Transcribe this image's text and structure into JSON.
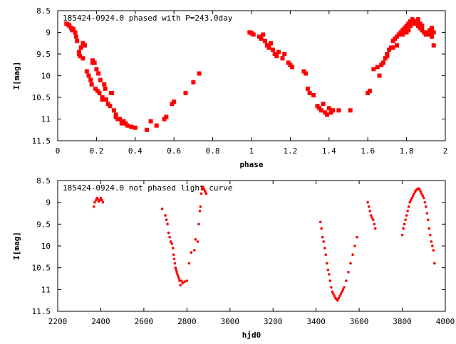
{
  "colors": {
    "points": "#ff0000",
    "axes": "#000000",
    "background": "#ffffff"
  },
  "chart_data": [
    {
      "type": "scatter",
      "title": "185424-0924.0 phased with P=243.0day",
      "xlabel": "phase",
      "ylabel": "I[mag]",
      "xlim": [
        0,
        2
      ],
      "ylim": [
        8.5,
        11.5
      ],
      "y_inverted": true,
      "grid": false,
      "x_ticks": [
        "0",
        "0.2",
        "0.4",
        "0.6",
        "0.8",
        "1",
        "1.2",
        "1.4",
        "1.6",
        "1.8",
        "2"
      ],
      "y_ticks": [
        "8.5",
        "9",
        "9.5",
        "10",
        "10.5",
        "11",
        "11.5"
      ],
      "series": [
        {
          "marker": "filled-square",
          "x": [
            0.045,
            0.055,
            0.06,
            0.07,
            0.075,
            0.08,
            0.09,
            0.095,
            0.1,
            0.11,
            0.115,
            0.12,
            0.13,
            0.14,
            0.15,
            0.16,
            0.17,
            0.175,
            0.18,
            0.19,
            0.195,
            0.2,
            0.205,
            0.21,
            0.215,
            0.22,
            0.23,
            0.24,
            0.245,
            0.25,
            0.26,
            0.27,
            0.275,
            0.28,
            0.29,
            0.3,
            0.31,
            0.32,
            0.33,
            0.34,
            0.35,
            0.36,
            0.38,
            0.4,
            0.46,
            0.48,
            0.51,
            0.55,
            0.56,
            0.59,
            0.6,
            0.66,
            0.7,
            0.73,
            0.99,
            1.0,
            1.01,
            1.04,
            1.05,
            1.06,
            1.07,
            1.08,
            1.09,
            1.1,
            1.11,
            1.12,
            1.13,
            1.14,
            1.16,
            1.17,
            1.19,
            1.2,
            1.21,
            1.27,
            1.28,
            1.29,
            1.3,
            1.32,
            1.34,
            1.35,
            1.36,
            1.37,
            1.38,
            1.39,
            1.4,
            1.41,
            1.42,
            1.45,
            1.51,
            1.6,
            1.61,
            1.66,
            1.67,
            1.68,
            1.69,
            1.7,
            1.71,
            1.72,
            1.73,
            1.74,
            1.75,
            1.76,
            1.77,
            1.78,
            1.79,
            1.8,
            1.81,
            1.82,
            1.83,
            1.84,
            1.85,
            1.86,
            1.87,
            1.88,
            1.89,
            1.9,
            1.91,
            1.92,
            1.93,
            1.94
          ],
          "y": [
            8.8,
            8.82,
            8.85,
            8.9,
            8.95,
            8.92,
            9.0,
            9.1,
            9.2,
            9.45,
            9.55,
            9.35,
            9.6,
            9.3,
            9.9,
            10.0,
            10.1,
            10.2,
            9.65,
            9.7,
            10.3,
            9.85,
            10.35,
            9.95,
            10.4,
            10.1,
            10.5,
            10.2,
            10.3,
            10.55,
            10.65,
            10.7,
            10.4,
            10.4,
            10.8,
            10.9,
            11.0,
            11.0,
            11.1,
            11.05,
            11.1,
            11.15,
            11.18,
            11.2,
            11.25,
            11.05,
            11.15,
            11.0,
            10.95,
            10.65,
            10.6,
            10.4,
            10.15,
            9.95,
            9.0,
            9.02,
            9.05,
            9.1,
            9.15,
            9.05,
            9.2,
            9.3,
            9.35,
            9.25,
            9.4,
            9.5,
            9.55,
            9.45,
            9.6,
            9.5,
            9.7,
            9.75,
            9.8,
            9.9,
            9.95,
            10.3,
            10.4,
            10.45,
            10.7,
            10.75,
            10.8,
            10.65,
            10.85,
            10.9,
            10.75,
            10.85,
            10.8,
            10.8,
            10.8,
            10.4,
            10.35,
            10.0,
            9.75,
            9.7,
            9.6,
            9.5,
            9.4,
            9.35,
            9.2,
            9.15,
            9.1,
            9.05,
            9.0,
            8.95,
            8.9,
            8.85,
            8.8,
            8.75,
            8.7,
            8.75,
            8.8,
            8.85,
            8.9,
            8.95,
            9.0,
            9.05,
            9.0,
            9.05,
            9.1,
            9.0
          ],
          "x_more": [
            0.11,
            0.13,
            0.16,
            0.18,
            0.23,
            0.3,
            1.63,
            1.65,
            1.7,
            1.73,
            1.75,
            1.78,
            1.8,
            1.81,
            1.82,
            1.84,
            1.85,
            1.86,
            1.87,
            1.88,
            1.9,
            1.92,
            1.93,
            1.94
          ],
          "y_more": [
            9.5,
            9.25,
            10.0,
            9.7,
            10.55,
            10.95,
            9.85,
            9.8,
            9.55,
            9.35,
            9.3,
            9.05,
            9.0,
            8.95,
            8.85,
            8.8,
            8.75,
            8.7,
            8.8,
            8.85,
            9.05,
            8.95,
            8.9,
            9.3
          ]
        }
      ]
    },
    {
      "type": "scatter",
      "title": "185424-0924.0 not phased light curve",
      "xlabel": "hjd0",
      "ylabel": "I[mag]",
      "xlim": [
        2200,
        4000
      ],
      "ylim": [
        8.5,
        11.5
      ],
      "y_inverted": true,
      "grid": false,
      "x_ticks": [
        "2200",
        "2400",
        "2600",
        "2800",
        "3000",
        "3200",
        "3400",
        "3600",
        "3800",
        "4000"
      ],
      "y_ticks": [
        "8.5",
        "9",
        "9.5",
        "10",
        "10.5",
        "11",
        "11.5"
      ],
      "series": [
        {
          "marker": "dot",
          "x": [
            2368,
            2372,
            2378,
            2382,
            2385,
            2390,
            2395,
            2400,
            2405,
            2410,
            2685,
            2700,
            2705,
            2710,
            2715,
            2720,
            2725,
            2730,
            2735,
            2738,
            2741,
            2744,
            2747,
            2750,
            2753,
            2756,
            2760,
            2763,
            2766,
            2770,
            2775,
            2780,
            2790,
            2800,
            2810,
            2820,
            2835,
            2840,
            2850,
            2855,
            2860,
            2863,
            2866,
            2870,
            2875,
            2880,
            2885,
            2890,
            3420,
            3425,
            3430,
            3435,
            3440,
            3445,
            3450,
            3455,
            3460,
            3465,
            3470,
            3475,
            3480,
            3485,
            3490,
            3495,
            3500,
            3505,
            3510,
            3515,
            3520,
            3525,
            3530,
            3540,
            3550,
            3560,
            3570,
            3580,
            3590,
            3640,
            3645,
            3650,
            3655,
            3660,
            3665,
            3670,
            3675,
            3800,
            3805,
            3810,
            3815,
            3820,
            3825,
            3830,
            3835,
            3840,
            3845,
            3850,
            3855,
            3860,
            3865,
            3870,
            3875,
            3880,
            3885,
            3890,
            3895,
            3900,
            3905,
            3910,
            3915,
            3920,
            3925,
            3930,
            3935,
            3940,
            3945,
            3950
          ],
          "y": [
            9.1,
            9.0,
            8.95,
            8.9,
            8.92,
            8.98,
            8.95,
            8.9,
            8.95,
            9.0,
            9.15,
            9.3,
            9.4,
            9.5,
            9.7,
            9.8,
            9.9,
            9.95,
            10.05,
            10.2,
            10.3,
            10.4,
            10.5,
            10.55,
            10.6,
            10.65,
            10.7,
            10.75,
            10.8,
            10.9,
            10.8,
            10.85,
            10.82,
            10.8,
            10.4,
            10.15,
            10.1,
            9.85,
            9.9,
            9.5,
            9.2,
            9.1,
            8.8,
            8.7,
            8.65,
            8.7,
            8.75,
            8.8,
            9.45,
            9.6,
            9.8,
            9.9,
            10.05,
            10.2,
            10.4,
            10.55,
            10.65,
            10.8,
            10.95,
            11.05,
            11.1,
            11.15,
            11.2,
            11.22,
            11.25,
            11.2,
            11.15,
            11.1,
            11.05,
            11.0,
            10.95,
            10.8,
            10.6,
            10.4,
            10.2,
            10.0,
            9.8,
            9.0,
            9.1,
            9.2,
            9.3,
            9.35,
            9.4,
            9.5,
            9.6,
            9.75,
            9.6,
            9.5,
            9.4,
            9.3,
            9.2,
            9.1,
            9.0,
            8.95,
            8.9,
            8.85,
            8.8,
            8.75,
            8.72,
            8.7,
            8.68,
            8.7,
            8.75,
            8.8,
            8.85,
            8.9,
            9.0,
            9.1,
            9.25,
            9.4,
            9.6,
            9.75,
            9.9,
            10.0,
            10.1,
            10.4
          ]
        }
      ]
    }
  ]
}
